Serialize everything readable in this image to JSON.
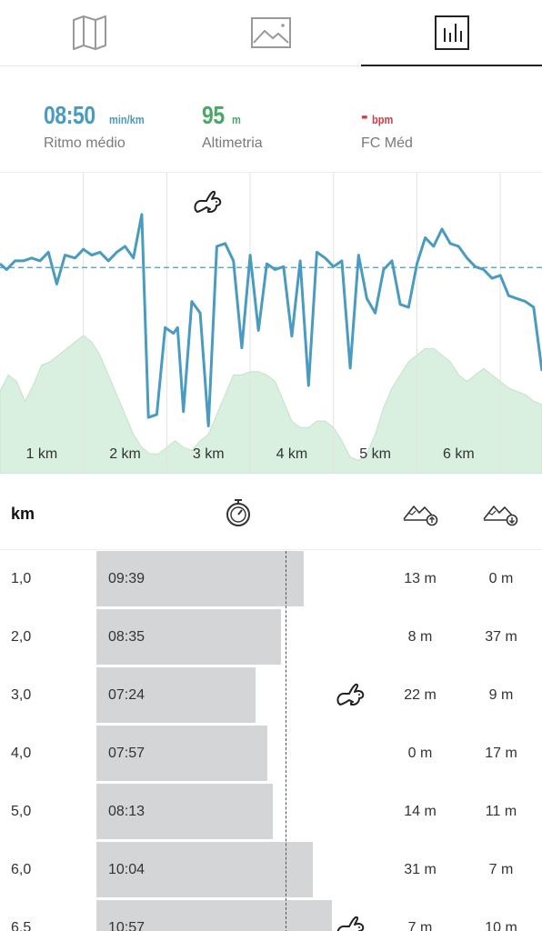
{
  "tabs": [
    {
      "name": "map-icon",
      "active": false
    },
    {
      "name": "photo-icon",
      "active": false
    },
    {
      "name": "chart-icon",
      "active": true
    }
  ],
  "stats": {
    "pace": {
      "value": "08:50",
      "unit": "min/km",
      "label": "Ritmo médio"
    },
    "altitude": {
      "value": "95",
      "unit": "m",
      "label": "Altimetria"
    },
    "heart_rate": {
      "value": "-",
      "unit": "bpm",
      "label": "FC Méd"
    }
  },
  "colors": {
    "pace": "#4a9bc0",
    "altitude": "#4aa865",
    "heart_rate": "#d23a45",
    "elevation_fill": "#d9efdf",
    "bar": "#d4d5d7"
  },
  "chart_data": {
    "type": "line",
    "title": "",
    "xlabel": "",
    "ylabel": "",
    "x_tick_labels": [
      "1 km",
      "2 km",
      "3 km",
      "4 km",
      "5 km",
      "6 km"
    ],
    "x_range_km": [
      0,
      6.5
    ],
    "grid": true,
    "series": [
      {
        "name": "",
        "kind": "pace",
        "x": [
          0.0,
          0.08,
          0.18,
          0.28,
          0.38,
          0.48,
          0.58,
          0.68,
          0.78,
          0.9,
          1.0,
          1.1,
          1.2,
          1.3,
          1.4,
          1.5,
          1.6,
          1.7,
          1.78,
          1.88,
          1.98,
          2.08,
          2.13,
          2.2,
          2.3,
          2.4,
          2.5,
          2.6,
          2.7,
          2.8,
          2.9,
          3.0,
          3.1,
          3.2,
          3.3,
          3.4,
          3.5,
          3.6,
          3.7,
          3.8,
          3.9,
          4.0,
          4.1,
          4.2,
          4.3,
          4.4,
          4.5,
          4.6,
          4.7,
          4.8,
          4.9,
          5.0,
          5.1,
          5.2,
          5.3,
          5.4,
          5.5,
          5.6,
          5.7,
          5.8,
          5.9,
          6.0,
          6.1,
          6.2,
          6.3,
          6.4,
          6.5
        ],
        "y": [
          8.7,
          8.9,
          8.6,
          8.6,
          8.5,
          8.6,
          8.3,
          9.4,
          8.4,
          8.5,
          8.2,
          8.4,
          8.3,
          8.6,
          8.3,
          8.1,
          8.5,
          7.0,
          14.0,
          13.9,
          10.9,
          11.1,
          10.9,
          13.8,
          10.0,
          10.4,
          14.3,
          8.1,
          8.0,
          8.6,
          11.6,
          8.4,
          11.0,
          8.7,
          8.9,
          8.8,
          11.2,
          8.6,
          12.9,
          8.3,
          8.5,
          8.8,
          8.6,
          12.3,
          8.4,
          9.9,
          10.4,
          8.9,
          8.6,
          10.1,
          10.2,
          8.7,
          7.8,
          8.1,
          7.5,
          8.0,
          8.1,
          8.5,
          8.8,
          8.9,
          9.2,
          9.1,
          9.8,
          9.9,
          10.0,
          10.2,
          12.4
        ],
        "avg": 8.83
      },
      {
        "name": "",
        "kind": "elevation",
        "x": [
          0.0,
          0.1,
          0.2,
          0.3,
          0.4,
          0.5,
          0.6,
          0.7,
          0.8,
          0.9,
          1.0,
          1.1,
          1.2,
          1.3,
          1.4,
          1.5,
          1.6,
          1.7,
          1.8,
          1.9,
          2.0,
          2.1,
          2.2,
          2.3,
          2.4,
          2.5,
          2.6,
          2.7,
          2.8,
          2.9,
          3.0,
          3.1,
          3.2,
          3.3,
          3.4,
          3.5,
          3.6,
          3.7,
          3.8,
          3.9,
          4.0,
          4.1,
          4.2,
          4.3,
          4.4,
          4.5,
          4.6,
          4.7,
          4.8,
          4.9,
          5.0,
          5.1,
          5.2,
          5.3,
          5.4,
          5.5,
          5.6,
          5.7,
          5.8,
          5.9,
          6.0,
          6.1,
          6.2,
          6.3,
          6.4,
          6.5
        ],
        "y": [
          25,
          30,
          28,
          22,
          27,
          33,
          34,
          36,
          38,
          40,
          42,
          40,
          36,
          30,
          24,
          18,
          12,
          8,
          6,
          6,
          8,
          10,
          8,
          7,
          10,
          12,
          18,
          24,
          30,
          30,
          31,
          31,
          30,
          28,
          22,
          16,
          14,
          14,
          16,
          16,
          14,
          10,
          5,
          4,
          6,
          12,
          20,
          26,
          30,
          34,
          36,
          38,
          38,
          36,
          34,
          30,
          28,
          30,
          32,
          30,
          28,
          26,
          25,
          24,
          22,
          21
        ]
      }
    ]
  },
  "splits": {
    "header": {
      "km_label": "km",
      "time_icon": "stopwatch-icon",
      "ascent_icon": "ascent-icon",
      "descent_icon": "descent-icon"
    },
    "avg_pace_seconds": 530,
    "rows": [
      {
        "km": "1,0",
        "time": "09:39",
        "seconds": 579,
        "up": "13 m",
        "down": "0 m",
        "fastest": false
      },
      {
        "km": "2,0",
        "time": "08:35",
        "seconds": 515,
        "up": "8 m",
        "down": "37 m",
        "fastest": false
      },
      {
        "km": "3,0",
        "time": "07:24",
        "seconds": 444,
        "up": "22 m",
        "down": "9 m",
        "fastest": true
      },
      {
        "km": "4,0",
        "time": "07:57",
        "seconds": 477,
        "up": "0 m",
        "down": "17 m",
        "fastest": false
      },
      {
        "km": "5,0",
        "time": "08:13",
        "seconds": 493,
        "up": "14 m",
        "down": "11 m",
        "fastest": false
      },
      {
        "km": "6,0",
        "time": "10:04",
        "seconds": 604,
        "up": "31 m",
        "down": "7 m",
        "fastest": false
      },
      {
        "km": "6,5",
        "time": "10:57",
        "seconds": 657,
        "up": "7 m",
        "down": "10 m",
        "fastest": false
      }
    ]
  }
}
